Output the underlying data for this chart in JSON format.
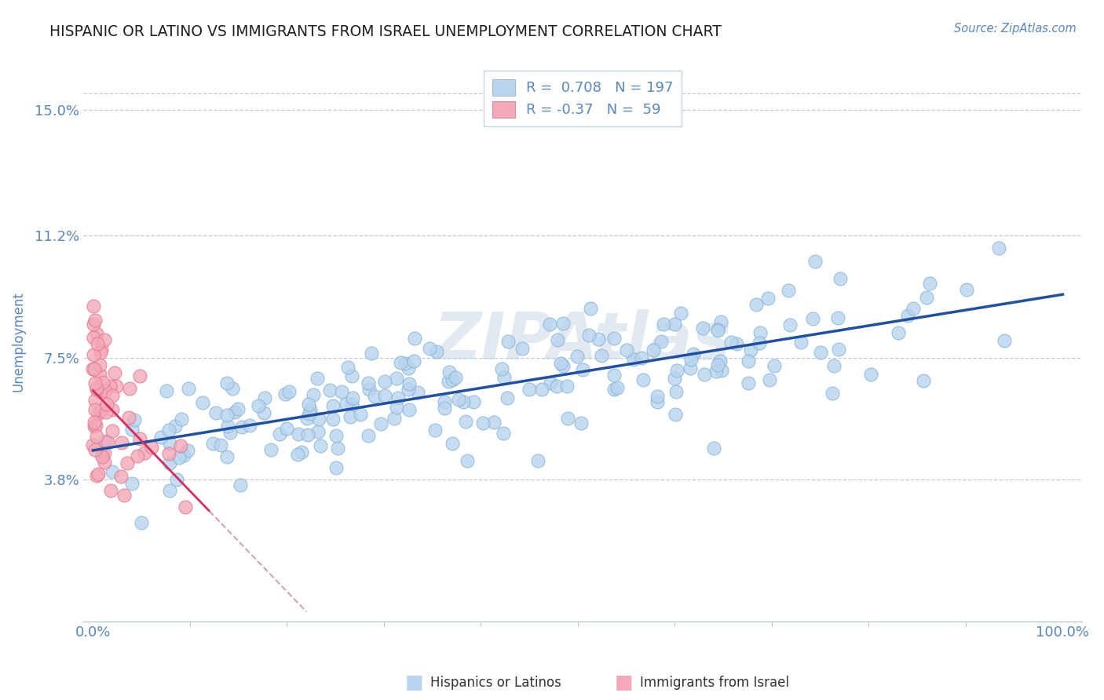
{
  "title": "HISPANIC OR LATINO VS IMMIGRANTS FROM ISRAEL UNEMPLOYMENT CORRELATION CHART",
  "source": "Source: ZipAtlas.com",
  "ylabel": "Unemployment",
  "xlim": [
    -0.01,
    1.02
  ],
  "ylim": [
    -0.005,
    0.165
  ],
  "xticklabels": [
    "0.0%",
    "100.0%"
  ],
  "yticks": [
    0.038,
    0.075,
    0.112,
    0.15
  ],
  "yticklabels": [
    "3.8%",
    "7.5%",
    "11.2%",
    "15.0%"
  ],
  "R_blue": 0.708,
  "N_blue": 197,
  "R_pink": -0.37,
  "N_pink": 59,
  "blue_dot_color": "#b8d4ee",
  "blue_dot_edge": "#88b4d8",
  "pink_dot_color": "#f4a8b8",
  "pink_dot_edge": "#e07890",
  "trend_blue_color": "#2050a0",
  "trend_pink_color": "#d03060",
  "trend_pink_dashed_color": "#d8a0b8",
  "bg_color": "#ffffff",
  "grid_color": "#c0ccd8",
  "axis_color": "#5888b8",
  "title_color": "#202020",
  "watermark": "ZIPAtlas",
  "legend_label_blue": "Hispanics or Latinos",
  "legend_label_pink": "Immigrants from Israel"
}
